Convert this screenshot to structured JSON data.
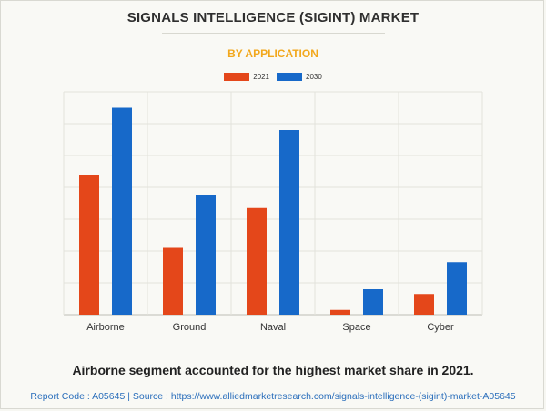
{
  "chart_data": {
    "type": "bar",
    "title": "SIGNALS INTELLIGENCE (SIGINT) MARKET",
    "subtitle": "BY APPLICATION",
    "categories": [
      "Airborne",
      "Ground",
      "Naval",
      "Space",
      "Cyber"
    ],
    "series": [
      {
        "name": "2021",
        "color": "#e4471a",
        "values": [
          4.4,
          2.1,
          3.35,
          0.15,
          0.65
        ]
      },
      {
        "name": "2030",
        "color": "#1769c9",
        "values": [
          6.5,
          3.75,
          5.8,
          0.8,
          1.65
        ]
      }
    ],
    "ylim": [
      0,
      7
    ],
    "grid": true,
    "legend_position": "top-center",
    "xlabel": "",
    "ylabel": ""
  },
  "footer": {
    "headline": "Airborne segment accounted for the highest market share in 2021.",
    "report": "Report Code : A05645  |  Source : https://www.alliedmarketresearch.com/signals-intelligence-(sigint)-market-A05645"
  },
  "colors": {
    "title": "#2f2f2f",
    "subtitle": "#f2a81d",
    "report_link": "#2a6ebb"
  }
}
